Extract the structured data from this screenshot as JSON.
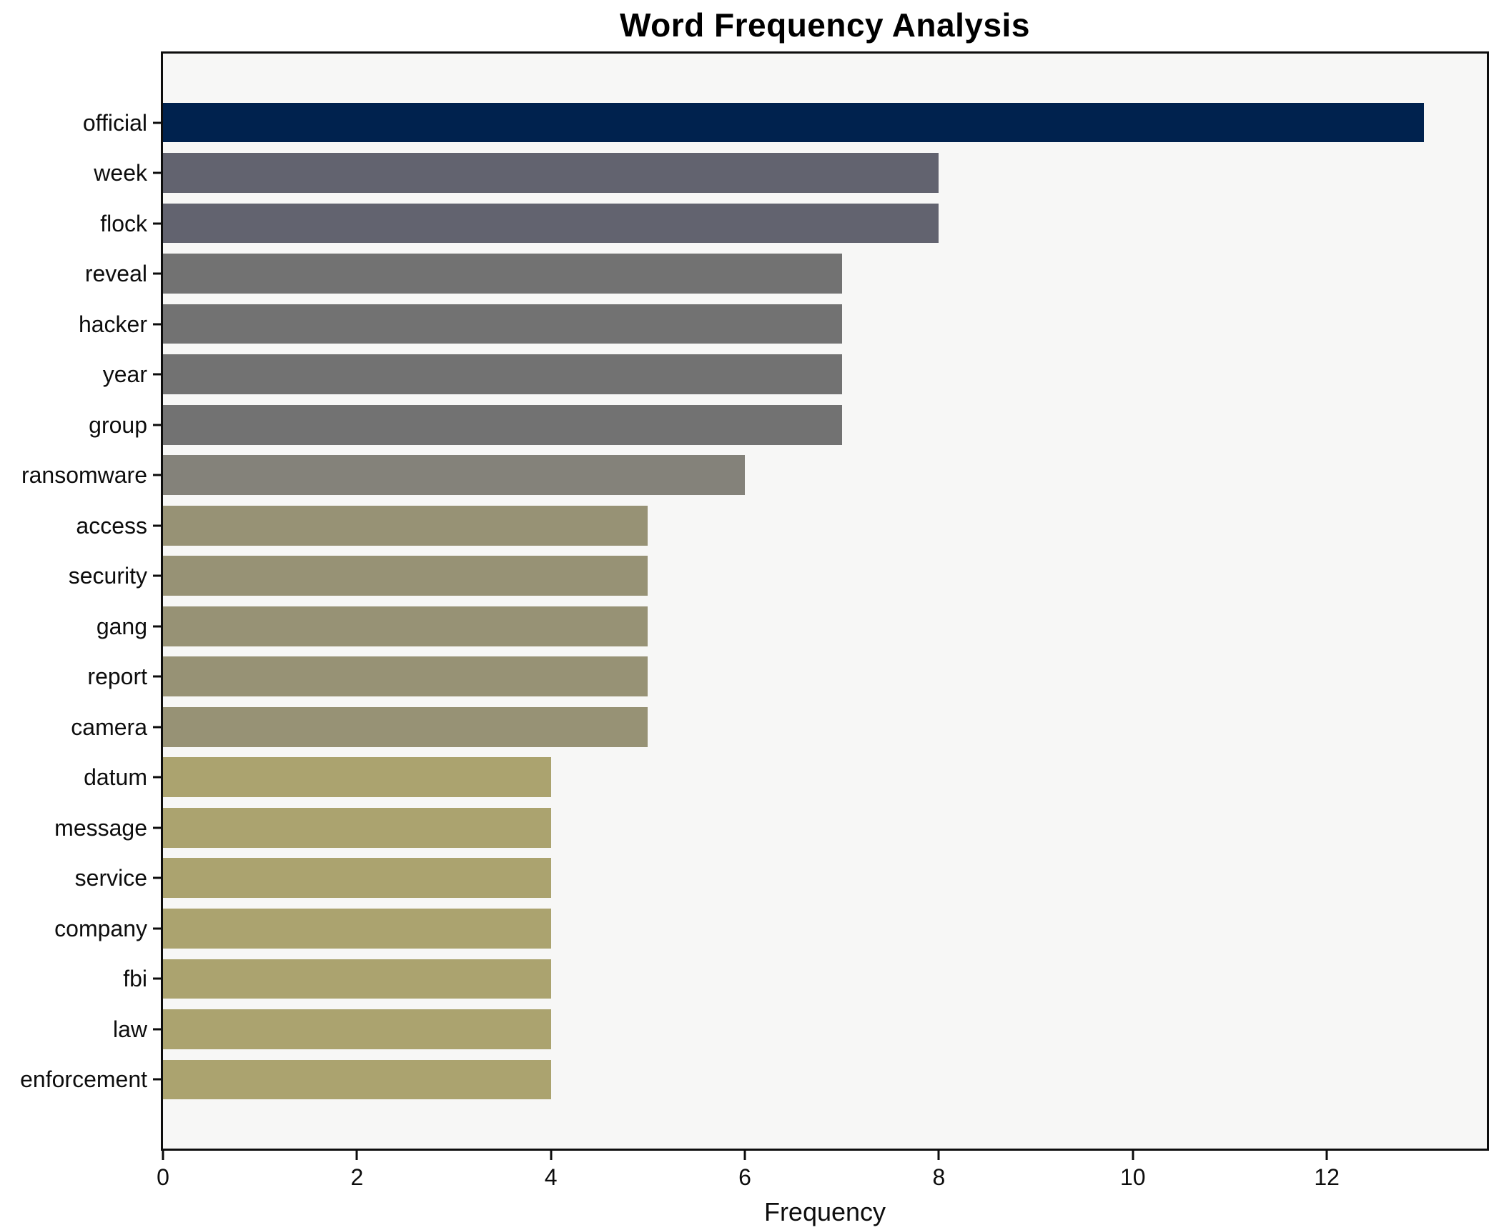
{
  "figure": {
    "title": "Word Frequency Analysis"
  },
  "chart_data": {
    "type": "bar",
    "orientation": "horizontal",
    "title": "Word Frequency Analysis",
    "xlabel": "Frequency",
    "ylabel": "",
    "categories": [
      "official",
      "week",
      "flock",
      "reveal",
      "hacker",
      "year",
      "group",
      "ransomware",
      "access",
      "security",
      "gang",
      "report",
      "camera",
      "datum",
      "message",
      "service",
      "company",
      "fbi",
      "law",
      "enforcement"
    ],
    "values": [
      13,
      8,
      8,
      7,
      7,
      7,
      7,
      6,
      5,
      5,
      5,
      5,
      5,
      4,
      4,
      4,
      4,
      4,
      4,
      4
    ],
    "bar_colors": [
      "#00224E",
      "#62636F",
      "#62636F",
      "#727272",
      "#727272",
      "#727272",
      "#727272",
      "#84827A",
      "#979275",
      "#979275",
      "#979275",
      "#979275",
      "#979275",
      "#ABA36F",
      "#ABA36F",
      "#ABA36F",
      "#ABA36F",
      "#ABA36F",
      "#ABA36F",
      "#ABA36F"
    ],
    "xlim": [
      0,
      13.65
    ],
    "xticks": [
      0,
      2,
      4,
      6,
      8,
      10,
      12
    ],
    "grid": false,
    "legend": null,
    "plot_background": "#F7F7F6",
    "figure_background": "#FFFFFF",
    "spine_color": "#0D0D0D",
    "text_color": "#000000",
    "bar_height_fraction": 0.79
  }
}
